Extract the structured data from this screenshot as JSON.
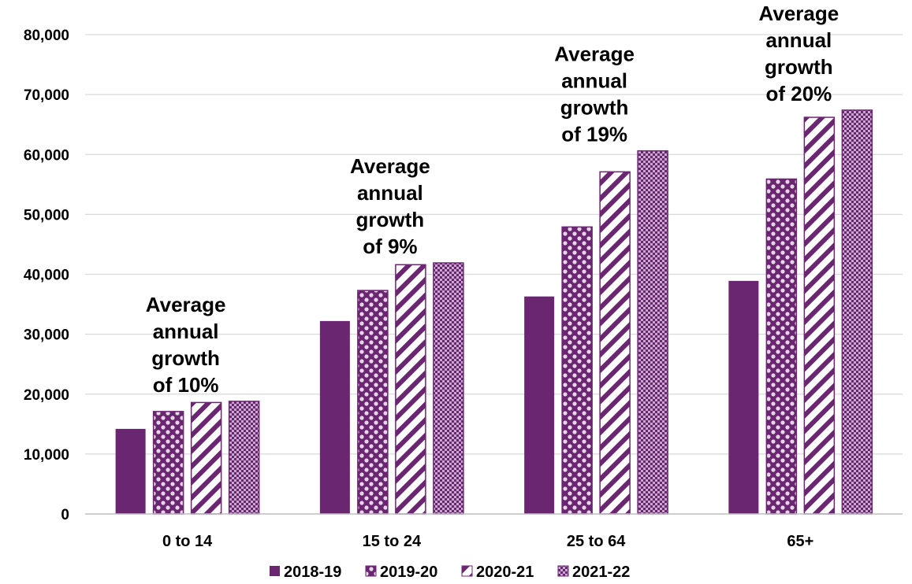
{
  "chart_data": {
    "type": "bar",
    "title": "",
    "xlabel": "",
    "ylabel": "",
    "categories": [
      "0 to 14",
      "15 to 24",
      "25 to 64",
      "65+"
    ],
    "series": [
      {
        "name": "2018-19",
        "values": [
          14200,
          32200,
          36300,
          38900
        ],
        "pattern": "solid"
      },
      {
        "name": "2019-20",
        "values": [
          17100,
          37300,
          47900,
          55900
        ],
        "pattern": "dots"
      },
      {
        "name": "2020-21",
        "values": [
          18600,
          41600,
          57100,
          66200
        ],
        "pattern": "diagonal"
      },
      {
        "name": "2021-22",
        "values": [
          18800,
          41900,
          60600,
          67400
        ],
        "pattern": "checker"
      }
    ],
    "ylim": [
      0,
      80000
    ],
    "yticks": [
      "0",
      "10,000",
      "20,000",
      "30,000",
      "40,000",
      "50,000",
      "60,000",
      "70,000",
      "80,000"
    ],
    "ytick_values": [
      0,
      10000,
      20000,
      30000,
      40000,
      50000,
      60000,
      70000,
      80000
    ],
    "grid": true,
    "legend_position": "bottom",
    "annotations": [
      {
        "category": "0 to 14",
        "lines": [
          "Average",
          "annual",
          "growth",
          "of 10%"
        ]
      },
      {
        "category": "15 to 24",
        "lines": [
          "Average",
          "annual",
          "growth",
          "of 9%"
        ]
      },
      {
        "category": "25 to 64",
        "lines": [
          "Average",
          "annual",
          "growth",
          "of 19%"
        ]
      },
      {
        "category": "65+",
        "lines": [
          "Average",
          "annual",
          "growth",
          "of 20%"
        ]
      }
    ],
    "colors": {
      "bar": "#6b2672",
      "pattern_light": "#e6d6e8",
      "grid": "#d9d9d9",
      "axis": "#bfbfbf"
    }
  }
}
